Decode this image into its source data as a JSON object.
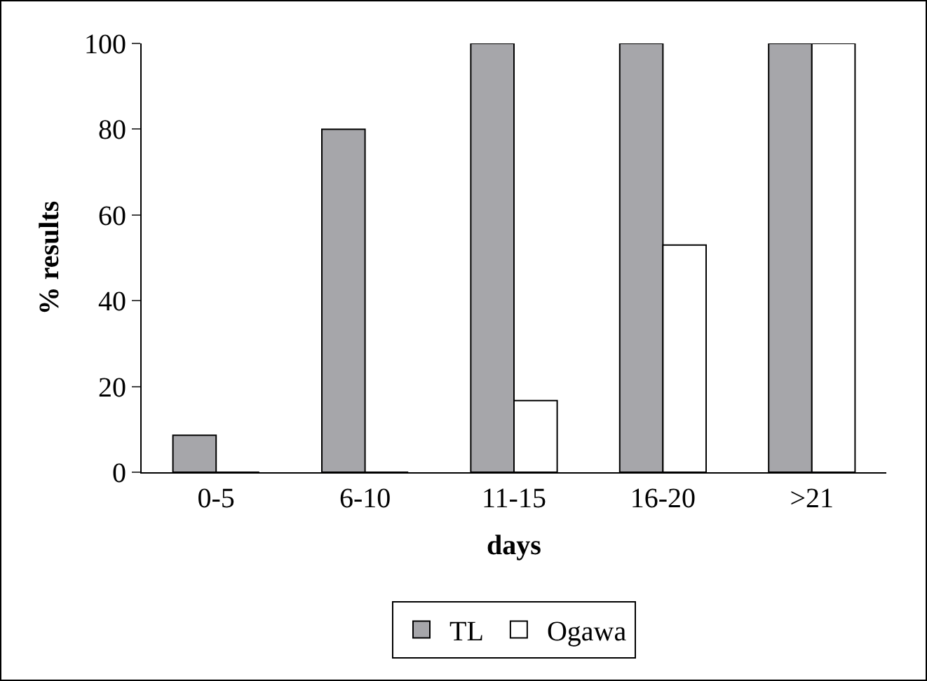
{
  "chart_data": {
    "type": "bar",
    "xlabel": "days",
    "ylabel": "% results",
    "categories": [
      "0-5",
      "6-10",
      "11-15",
      "16-20",
      ">21"
    ],
    "series": [
      {
        "name": "TL",
        "color": "#a6a6aa",
        "values": [
          8.6,
          80,
          100,
          100,
          100
        ]
      },
      {
        "name": "Ogawa",
        "color": "#ffffff",
        "values": [
          0,
          0,
          16.7,
          53,
          100
        ]
      }
    ],
    "ylim": [
      0,
      100
    ],
    "yticks": [
      0,
      20,
      40,
      60,
      80,
      100
    ],
    "grid": false,
    "legend": "bottom"
  }
}
